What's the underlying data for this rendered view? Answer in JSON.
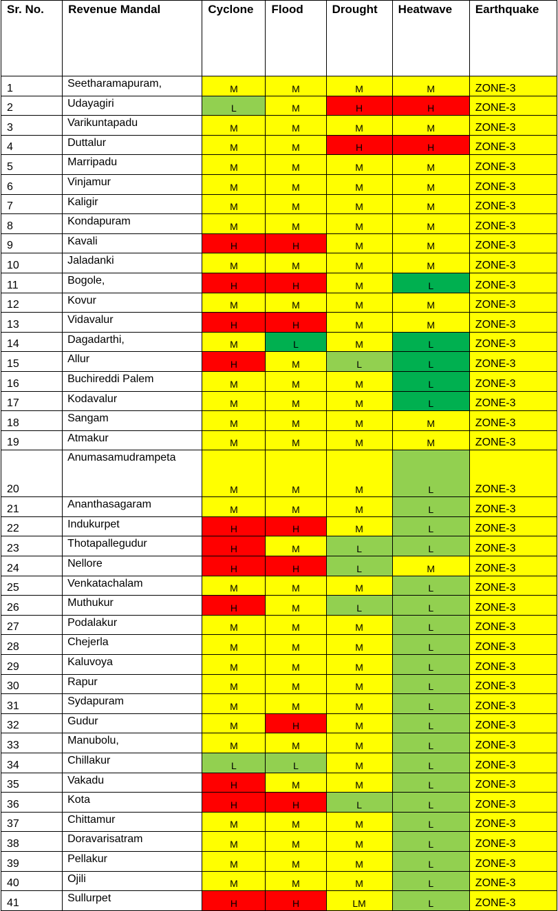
{
  "headers": [
    "Sr. No.",
    "Revenue Mandal",
    "Cyclone",
    "Flood",
    "Drought",
    "Heatwave",
    "Earthquake"
  ],
  "colors": {
    "M": "#ffff00",
    "H": "#ff0000",
    "L": "#92d050",
    "L-dark": "#00b050"
  },
  "rows": [
    {
      "sr": "1",
      "mandal": "Seetharamapuram,",
      "cyclone": "M",
      "flood": "M",
      "drought": "M",
      "heatwave": "M",
      "earthquake": "ZONE-3"
    },
    {
      "sr": "2",
      "mandal": "Udayagiri",
      "cyclone": "L",
      "flood": "M",
      "drought": "H",
      "heatwave": "H",
      "earthquake": "ZONE-3"
    },
    {
      "sr": "3",
      "mandal": "Varikuntapadu",
      "cyclone": "M",
      "flood": "M",
      "drought": "M",
      "heatwave": "M",
      "earthquake": "ZONE-3"
    },
    {
      "sr": "4",
      "mandal": "Duttalur",
      "cyclone": "M",
      "flood": "M",
      "drought": "H",
      "heatwave": "H",
      "earthquake": "ZONE-3"
    },
    {
      "sr": "5",
      "mandal": "Marripadu",
      "cyclone": "M",
      "flood": "M",
      "drought": "M",
      "heatwave": "M",
      "earthquake": "ZONE-3"
    },
    {
      "sr": "6",
      "mandal": "Vinjamur",
      "cyclone": "M",
      "flood": "M",
      "drought": "M",
      "heatwave": "M",
      "earthquake": "ZONE-3"
    },
    {
      "sr": "7",
      "mandal": "Kaligir",
      "cyclone": "M",
      "flood": "M",
      "drought": "M",
      "heatwave": "M",
      "earthquake": "ZONE-3"
    },
    {
      "sr": "8",
      "mandal": "Kondapuram",
      "cyclone": "M",
      "flood": "M",
      "drought": "M",
      "heatwave": "M",
      "earthquake": "ZONE-3"
    },
    {
      "sr": "9",
      "mandal": "Kavali",
      "cyclone": "H",
      "flood": "H",
      "drought": "M",
      "heatwave": "M",
      "earthquake": "ZONE-3"
    },
    {
      "sr": "10",
      "mandal": "Jaladanki",
      "cyclone": "M",
      "flood": "M",
      "drought": "M",
      "heatwave": "M",
      "earthquake": "ZONE-3"
    },
    {
      "sr": "11",
      "mandal": "Bogole,",
      "cyclone": "H",
      "flood": "H",
      "drought": "M",
      "heatwave": "L",
      "earthquake": "ZONE-3"
    },
    {
      "sr": "12",
      "mandal": "Kovur",
      "cyclone": "M",
      "flood": "M",
      "drought": "M",
      "heatwave": "M",
      "earthquake": "ZONE-3"
    },
    {
      "sr": "13",
      "mandal": "Vidavalur",
      "cyclone": "H",
      "flood": "H",
      "drought": "M",
      "heatwave": "M",
      "earthquake": "ZONE-3"
    },
    {
      "sr": "14",
      "mandal": "Dagadarthi,",
      "cyclone": "M",
      "flood": "L",
      "drought": "M",
      "heatwave": "L",
      "earthquake": "ZONE-3"
    },
    {
      "sr": "15",
      "mandal": "Allur",
      "cyclone": "H",
      "flood": "M",
      "drought": "L",
      "heatwave": "L",
      "earthquake": "ZONE-3"
    },
    {
      "sr": "16",
      "mandal": "Buchireddi Palem",
      "cyclone": "M",
      "flood": "M",
      "drought": "M",
      "heatwave": "L",
      "earthquake": "ZONE-3"
    },
    {
      "sr": "17",
      "mandal": "Kodavalur",
      "cyclone": "M",
      "flood": "M",
      "drought": "M",
      "heatwave": "L",
      "earthquake": "ZONE-3"
    },
    {
      "sr": "18",
      "mandal": "Sangam",
      "cyclone": "M",
      "flood": "M",
      "drought": "M",
      "heatwave": "M",
      "earthquake": "ZONE-3"
    },
    {
      "sr": "19",
      "mandal": "Atmakur",
      "cyclone": "M",
      "flood": "M",
      "drought": "M",
      "heatwave": "M",
      "earthquake": "ZONE-3"
    },
    {
      "sr": "20",
      "mandal": "Anumasamudrampeta",
      "cyclone": "M",
      "flood": "M",
      "drought": "M",
      "heatwave": "L",
      "earthquake": "ZONE-3"
    },
    {
      "sr": "21",
      "mandal": "Ananthasagaram",
      "cyclone": "M",
      "flood": "M",
      "drought": "M",
      "heatwave": "L",
      "earthquake": "ZONE-3"
    },
    {
      "sr": "22",
      "mandal": "Indukurpet",
      "cyclone": "H",
      "flood": "H",
      "drought": "M",
      "heatwave": "L",
      "earthquake": "ZONE-3"
    },
    {
      "sr": "23",
      "mandal": "Thotapallegudur",
      "cyclone": "H",
      "flood": "M",
      "drought": "L",
      "heatwave": "L",
      "earthquake": "ZONE-3"
    },
    {
      "sr": "24",
      "mandal": "Nellore",
      "cyclone": "H",
      "flood": "H",
      "drought": "L",
      "heatwave": "M",
      "earthquake": "ZONE-3"
    },
    {
      "sr": "25",
      "mandal": "Venkatachalam",
      "cyclone": "M",
      "flood": "M",
      "drought": "M",
      "heatwave": "L",
      "earthquake": "ZONE-3"
    },
    {
      "sr": "26",
      "mandal": "Muthukur",
      "cyclone": "H",
      "flood": "M",
      "drought": "L",
      "heatwave": "L",
      "earthquake": "ZONE-3"
    },
    {
      "sr": "27",
      "mandal": "Podalakur",
      "cyclone": "M",
      "flood": "M",
      "drought": "M",
      "heatwave": "L",
      "earthquake": "ZONE-3"
    },
    {
      "sr": "28",
      "mandal": "Chejerla",
      "cyclone": "M",
      "flood": "M",
      "drought": "M",
      "heatwave": "L",
      "earthquake": "ZONE-3"
    },
    {
      "sr": "29",
      "mandal": "Kaluvoya",
      "cyclone": "M",
      "flood": "M",
      "drought": "M",
      "heatwave": "L",
      "earthquake": "ZONE-3"
    },
    {
      "sr": "30",
      "mandal": "Rapur",
      "cyclone": "M",
      "flood": "M",
      "drought": "M",
      "heatwave": "L",
      "earthquake": "ZONE-3"
    },
    {
      "sr": "31",
      "mandal": "Sydapuram",
      "cyclone": "M",
      "flood": "M",
      "drought": "M",
      "heatwave": "L",
      "earthquake": "ZONE-3"
    },
    {
      "sr": "32",
      "mandal": "Gudur",
      "cyclone": "M",
      "flood": "H",
      "drought": "M",
      "heatwave": "L",
      "earthquake": "ZONE-3"
    },
    {
      "sr": "33",
      "mandal": "Manubolu,",
      "cyclone": "M",
      "flood": "M",
      "drought": "M",
      "heatwave": "L",
      "earthquake": "ZONE-3"
    },
    {
      "sr": "34",
      "mandal": "Chillakur",
      "cyclone": "L",
      "flood": "L",
      "drought": "M",
      "heatwave": "L",
      "earthquake": "ZONE-3"
    },
    {
      "sr": "35",
      "mandal": "Vakadu",
      "cyclone": "H",
      "flood": "M",
      "drought": "M",
      "heatwave": "L",
      "earthquake": "ZONE-3"
    },
    {
      "sr": "36",
      "mandal": "Kota",
      "cyclone": "H",
      "flood": "H",
      "drought": "L",
      "heatwave": "L",
      "earthquake": "ZONE-3"
    },
    {
      "sr": "37",
      "mandal": "Chittamur",
      "cyclone": "M",
      "flood": "M",
      "drought": "M",
      "heatwave": "L",
      "earthquake": "ZONE-3"
    },
    {
      "sr": "38",
      "mandal": "Doravarisatram",
      "cyclone": "M",
      "flood": "M",
      "drought": "M",
      "heatwave": "L",
      "earthquake": "ZONE-3"
    },
    {
      "sr": "39",
      "mandal": "Pellakur",
      "cyclone": "M",
      "flood": "M",
      "drought": "M",
      "heatwave": "L",
      "earthquake": "ZONE-3"
    },
    {
      "sr": "40",
      "mandal": "Ojili",
      "cyclone": "M",
      "flood": "M",
      "drought": "M",
      "heatwave": "L",
      "earthquake": "ZONE-3"
    },
    {
      "sr": "41",
      "mandal": "Sullurpet",
      "cyclone": "H",
      "flood": "H",
      "drought": "LM",
      "heatwave": "L",
      "earthquake": "ZONE-3"
    }
  ]
}
